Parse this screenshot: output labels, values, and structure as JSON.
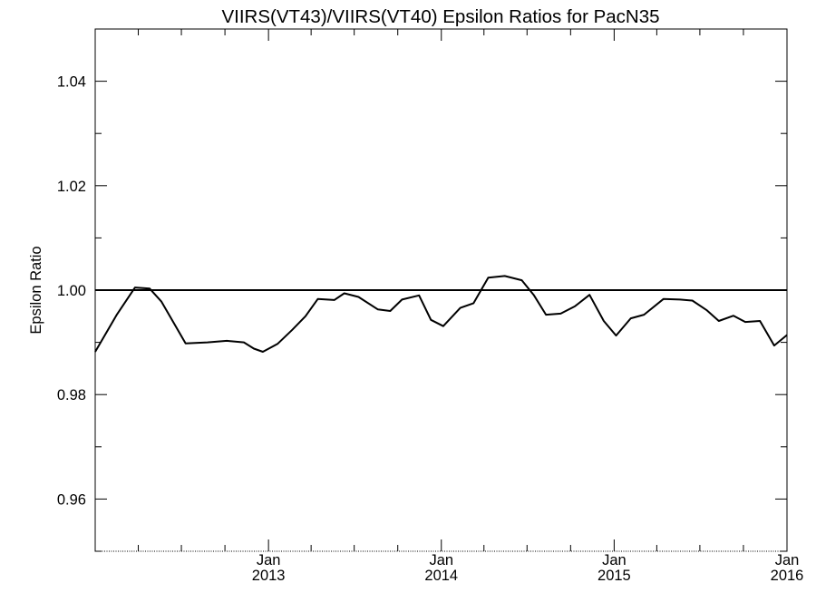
{
  "chart_data": {
    "type": "line",
    "title": "VIIRS(VT43)/VIIRS(VT40)  Epsilon Ratios for PacN35",
    "ylabel": "Epsilon Ratio",
    "xlabel": "",
    "ylim": [
      0.95,
      1.05
    ],
    "xlim": [
      "2012-01-01",
      "2016-01-01"
    ],
    "yticks": [
      {
        "value": 0.96,
        "label": "0.96"
      },
      {
        "value": 0.98,
        "label": "0.98"
      },
      {
        "value": 1.0,
        "label": "1.00"
      },
      {
        "value": 1.02,
        "label": "1.02"
      },
      {
        "value": 1.04,
        "label": "1.04"
      }
    ],
    "xticks": [
      {
        "date": "2013-01-01",
        "month": "Jan",
        "year": "2013"
      },
      {
        "date": "2014-01-01",
        "month": "Jan",
        "year": "2014"
      },
      {
        "date": "2015-01-01",
        "month": "Jan",
        "year": "2015"
      },
      {
        "date": "2016-01-01",
        "month": "Jan",
        "year": "2016"
      }
    ],
    "reference_line": {
      "y": 1.0
    },
    "grid": false,
    "series": [
      {
        "x": [
          "2012-01-01",
          "2012-02-15",
          "2012-03-25",
          "2012-04-25",
          "2012-05-20",
          "2012-06-10",
          "2012-07-10",
          "2012-08-25",
          "2012-10-05",
          "2012-11-10",
          "2012-12-01",
          "2012-12-20",
          "2013-01-20",
          "2013-02-20",
          "2013-03-20",
          "2013-04-15",
          "2013-05-20",
          "2013-06-10",
          "2013-07-10",
          "2013-08-20",
          "2013-09-15",
          "2013-10-10",
          "2013-11-15",
          "2013-12-10",
          "2014-01-05",
          "2014-02-10",
          "2014-03-10",
          "2014-04-10",
          "2014-05-15",
          "2014-06-20",
          "2014-07-15",
          "2014-08-10",
          "2014-09-10",
          "2014-10-10",
          "2014-11-10",
          "2014-12-10",
          "2015-01-05",
          "2015-02-05",
          "2015-03-05",
          "2015-04-15",
          "2015-05-20",
          "2015-06-15",
          "2015-07-15",
          "2015-08-10",
          "2015-09-10",
          "2015-10-05",
          "2015-11-05",
          "2015-12-05",
          "2016-01-01"
        ],
        "y": [
          0.9882,
          0.9952,
          1.0005,
          1.0003,
          0.9978,
          0.9945,
          0.9898,
          0.99,
          0.9903,
          0.99,
          0.9888,
          0.9882,
          0.9897,
          0.9924,
          0.995,
          0.9983,
          0.9981,
          0.9994,
          0.9987,
          0.9963,
          0.996,
          0.9982,
          0.999,
          0.9943,
          0.9931,
          0.9966,
          0.9975,
          1.0024,
          1.0027,
          1.0019,
          0.9991,
          0.9953,
          0.9955,
          0.9969,
          0.9991,
          0.9941,
          0.9913,
          0.9946,
          0.9953,
          0.9983,
          0.9982,
          0.998,
          0.9962,
          0.9941,
          0.9951,
          0.9939,
          0.9941,
          0.9894,
          0.9914
        ]
      }
    ]
  }
}
